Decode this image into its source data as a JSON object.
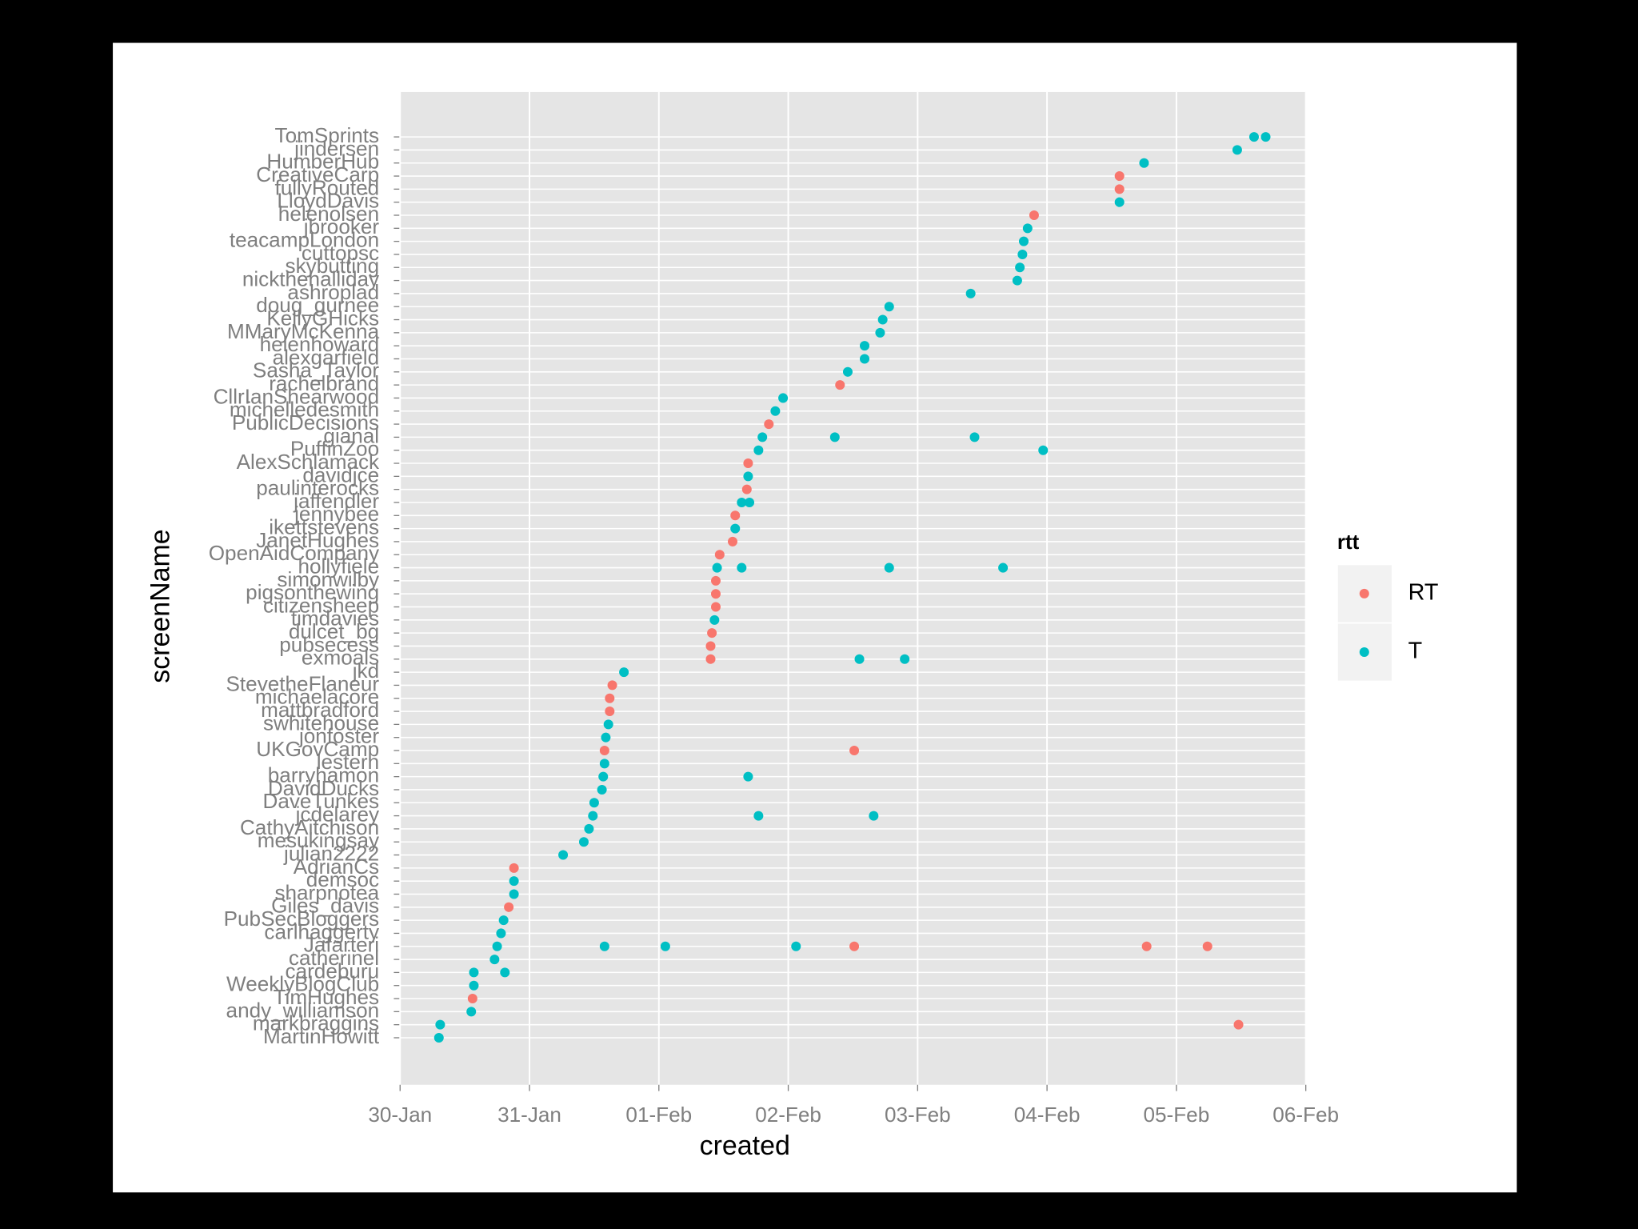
{
  "chart_data": {
    "type": "scatter",
    "x_label": "created",
    "y_label": "screenName",
    "legend_title": "rtt",
    "legend_position": "right",
    "grid": true,
    "xlim": [
      0,
      7
    ],
    "xticks": [
      {
        "value": 0,
        "label": "30-Jan"
      },
      {
        "value": 1,
        "label": "31-Jan"
      },
      {
        "value": 2,
        "label": "01-Feb"
      },
      {
        "value": 3,
        "label": "02-Feb"
      },
      {
        "value": 4,
        "label": "03-Feb"
      },
      {
        "value": 5,
        "label": "04-Feb"
      },
      {
        "value": 6,
        "label": "05-Feb"
      },
      {
        "value": 7,
        "label": "06-Feb"
      }
    ],
    "categories": [
      "TomSprints",
      "jindersen",
      "HumberHub",
      "CreativeCarp",
      "fullyRouted",
      "LloydDavis",
      "helenolsen",
      "jbrooker",
      "teacampLondon",
      "cuttopsc",
      "skybutting",
      "nickthehalliday",
      "ashroplad",
      "doug_gurnee",
      "KellyGHicks",
      "MMaryMcKenna",
      "helenhoward",
      "alexgarfield",
      "Sasha_Taylor",
      "rachelbrand",
      "CllrIanShearwood",
      "michelledesmith",
      "PublicDecisions",
      "gianal",
      "PuffinZoo",
      "AlexSchlamack",
      "davidjce",
      "paulinterocks",
      "jaffendler",
      "jennybee",
      "ikettstevens",
      "JanetHughes",
      "OpenAidCompany",
      "hollyfiele",
      "simonwilby",
      "pigsonthewing",
      "citizensheep",
      "timdavies",
      "dulcet_bg",
      "pubsecess",
      "exmoals",
      "jkd",
      "StevetheFlaneur",
      "michaelacore",
      "mattbradford",
      "swhitehouse",
      "jonfoster",
      "UKGovCamp",
      "lestern",
      "barryhamon",
      "DavidDucks",
      "DaveTunkes",
      "jcdelarey",
      "CathyAitchison",
      "mesukingsay",
      "julian2222",
      "AdrianCs",
      "demsoc",
      "sharpnotea",
      "Giles_davis",
      "PubSecBloggers",
      "carlhaggerty",
      "Jafarteri",
      "catherinel",
      "cardeburu",
      "WeeklyBlogClub",
      "TimHughes",
      "andy_williamson",
      "markbraggins",
      "MartinHowitt"
    ],
    "series": [
      {
        "name": "RT",
        "color": "#F8766D",
        "x": [
          5.56,
          5.56,
          4.9,
          3.4,
          2.85,
          2.69,
          2.68,
          2.59,
          2.57,
          2.47,
          2.44,
          2.44,
          2.44,
          2.41,
          2.4,
          2.4,
          1.64,
          1.62,
          1.62,
          1.58,
          3.51,
          0.88,
          0.84,
          3.51,
          5.77,
          6.24,
          0.56,
          6.48
        ],
        "y": [
          "CreativeCarp",
          "fullyRouted",
          "helenolsen",
          "rachelbrand",
          "PublicDecisions",
          "AlexSchlamack",
          "paulinterocks",
          "jennybee",
          "JanetHughes",
          "OpenAidCompany",
          "simonwilby",
          "pigsonthewing",
          "citizensheep",
          "dulcet_bg",
          "pubsecess",
          "exmoals",
          "StevetheFlaneur",
          "michaelacore",
          "mattbradford",
          "UKGovCamp",
          "UKGovCamp",
          "AdrianCs",
          "Giles_davis",
          "Jafarteri",
          "Jafarteri",
          "Jafarteri",
          "TimHughes",
          "markbraggins"
        ]
      },
      {
        "name": "T",
        "color": "#00BFC4",
        "x": [
          6.6,
          6.69,
          6.47,
          5.75,
          5.56,
          4.85,
          4.82,
          4.81,
          4.79,
          4.77,
          4.41,
          3.78,
          3.73,
          3.71,
          3.59,
          3.59,
          3.46,
          2.96,
          2.9,
          2.8,
          3.36,
          4.44,
          2.77,
          4.97,
          2.69,
          2.64,
          2.7,
          2.59,
          2.45,
          2.64,
          3.78,
          4.66,
          2.43,
          3.55,
          3.9,
          1.73,
          1.61,
          1.59,
          1.58,
          1.57,
          2.69,
          1.56,
          1.5,
          1.49,
          2.77,
          3.66,
          1.46,
          1.42,
          1.26,
          0.88,
          0.88,
          0.8,
          0.78,
          0.75,
          1.58,
          2.05,
          3.06,
          0.73,
          0.57,
          0.81,
          0.57,
          0.55,
          0.31,
          0.3
        ],
        "y": [
          "TomSprints",
          "TomSprints",
          "jindersen",
          "HumberHub",
          "LloydDavis",
          "jbrooker",
          "teacampLondon",
          "cuttopsc",
          "skybutting",
          "nickthehalliday",
          "ashroplad",
          "doug_gurnee",
          "KellyGHicks",
          "MMaryMcKenna",
          "helenhoward",
          "alexgarfield",
          "Sasha_Taylor",
          "CllrIanShearwood",
          "michelledesmith",
          "gianal",
          "gianal",
          "gianal",
          "PuffinZoo",
          "PuffinZoo",
          "davidjce",
          "jaffendler",
          "jaffendler",
          "ikettstevens",
          "hollyfiele",
          "hollyfiele",
          "hollyfiele",
          "hollyfiele",
          "timdavies",
          "exmoals",
          "exmoals",
          "jkd",
          "swhitehouse",
          "jonfoster",
          "lestern",
          "barryhamon",
          "barryhamon",
          "DavidDucks",
          "DaveTunkes",
          "jcdelarey",
          "jcdelarey",
          "jcdelarey",
          "CathyAitchison",
          "mesukingsay",
          "julian2222",
          "demsoc",
          "sharpnotea",
          "PubSecBloggers",
          "carlhaggerty",
          "Jafarteri",
          "Jafarteri",
          "Jafarteri",
          "Jafarteri",
          "catherinel",
          "cardeburu",
          "cardeburu",
          "WeeklyBlogClub",
          "andy_williamson",
          "markbraggins",
          "MartinHowitt"
        ]
      }
    ]
  }
}
